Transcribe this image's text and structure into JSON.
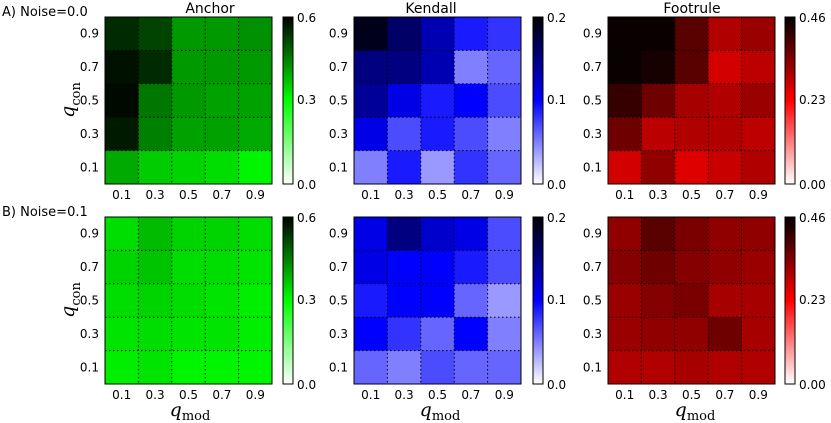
{
  "row_labels": [
    "A) Noise=0.0",
    "B) Noise=0.1"
  ],
  "column_titles": [
    "Anchor",
    "Kendall",
    "Footrule"
  ],
  "axis_labels": {
    "y_main": "q",
    "y_sub": "con",
    "x_main": "q",
    "x_sub": "mod"
  },
  "tick_labels": [
    "0.1",
    "0.3",
    "0.5",
    "0.7",
    "0.9"
  ],
  "colorbars": {
    "anchor": {
      "ticks": [
        "0.0",
        "0.3",
        "0.6"
      ],
      "max": 0.6
    },
    "kendall": {
      "ticks": [
        "0.0",
        "0.1",
        "0.2"
      ],
      "max": 0.2
    },
    "footrule": {
      "ticks": [
        "0.00",
        "0.23",
        "0.46"
      ],
      "max": 0.46
    }
  },
  "colors": {
    "anchor": [
      "#ffffff",
      "#00ff00",
      "#000000"
    ],
    "kendall": [
      "#ffffff",
      "#0000ff",
      "#000000"
    ],
    "footrule": [
      "#ffffff",
      "#ff0000",
      "#000000"
    ]
  },
  "chart_data": [
    {
      "type": "heatmap",
      "title": "Anchor",
      "row": "A) Noise=0.0",
      "xlabel": "q_mod",
      "ylabel": "q_con",
      "x": [
        0.1,
        0.3,
        0.5,
        0.7,
        0.9
      ],
      "y": [
        0.9,
        0.7,
        0.5,
        0.3,
        0.1
      ],
      "clim": [
        0,
        0.6
      ],
      "z": [
        [
          0.55,
          0.52,
          0.42,
          0.42,
          0.43
        ],
        [
          0.58,
          0.55,
          0.42,
          0.42,
          0.42
        ],
        [
          0.59,
          0.46,
          0.42,
          0.41,
          0.41
        ],
        [
          0.57,
          0.45,
          0.41,
          0.41,
          0.4
        ],
        [
          0.4,
          0.36,
          0.35,
          0.34,
          0.31
        ]
      ]
    },
    {
      "type": "heatmap",
      "title": "Kendall",
      "row": "A) Noise=0.0",
      "xlabel": "q_mod",
      "ylabel": "q_con",
      "x": [
        0.1,
        0.3,
        0.5,
        0.7,
        0.9
      ],
      "y": [
        0.9,
        0.7,
        0.5,
        0.3,
        0.1
      ],
      "clim": [
        0,
        0.2
      ],
      "z": [
        [
          0.19,
          0.16,
          0.13,
          0.09,
          0.08
        ],
        [
          0.15,
          0.15,
          0.13,
          0.05,
          0.06
        ],
        [
          0.14,
          0.11,
          0.09,
          0.1,
          0.07
        ],
        [
          0.11,
          0.07,
          0.09,
          0.07,
          0.05
        ],
        [
          0.05,
          0.09,
          0.04,
          0.08,
          0.06
        ]
      ]
    },
    {
      "type": "heatmap",
      "title": "Footrule",
      "row": "A) Noise=0.0",
      "xlabel": "q_mod",
      "ylabel": "q_con",
      "x": [
        0.1,
        0.3,
        0.5,
        0.7,
        0.9
      ],
      "y": [
        0.9,
        0.7,
        0.5,
        0.3,
        0.1
      ],
      "clim": [
        0,
        0.46
      ],
      "z": [
        [
          0.45,
          0.45,
          0.38,
          0.3,
          0.32
        ],
        [
          0.45,
          0.44,
          0.38,
          0.27,
          0.29
        ],
        [
          0.41,
          0.36,
          0.31,
          0.3,
          0.32
        ],
        [
          0.36,
          0.29,
          0.3,
          0.3,
          0.29
        ],
        [
          0.27,
          0.33,
          0.26,
          0.28,
          0.3
        ]
      ]
    },
    {
      "type": "heatmap",
      "title": "Anchor",
      "row": "B) Noise=0.1",
      "xlabel": "q_mod",
      "ylabel": "q_con",
      "x": [
        0.1,
        0.3,
        0.5,
        0.7,
        0.9
      ],
      "y": [
        0.9,
        0.7,
        0.5,
        0.3,
        0.1
      ],
      "clim": [
        0,
        0.6
      ],
      "z": [
        [
          0.34,
          0.38,
          0.35,
          0.35,
          0.34
        ],
        [
          0.35,
          0.37,
          0.34,
          0.34,
          0.33
        ],
        [
          0.34,
          0.35,
          0.34,
          0.33,
          0.32
        ],
        [
          0.33,
          0.34,
          0.33,
          0.33,
          0.32
        ],
        [
          0.32,
          0.33,
          0.31,
          0.31,
          0.31
        ]
      ]
    },
    {
      "type": "heatmap",
      "title": "Kendall",
      "row": "B) Noise=0.1",
      "xlabel": "q_mod",
      "ylabel": "q_con",
      "x": [
        0.1,
        0.3,
        0.5,
        0.7,
        0.9
      ],
      "y": [
        0.9,
        0.7,
        0.5,
        0.3,
        0.1
      ],
      "clim": [
        0,
        0.2
      ],
      "z": [
        [
          0.11,
          0.15,
          0.12,
          0.11,
          0.07
        ],
        [
          0.11,
          0.1,
          0.1,
          0.09,
          0.07
        ],
        [
          0.09,
          0.1,
          0.1,
          0.06,
          0.04
        ],
        [
          0.1,
          0.08,
          0.06,
          0.1,
          0.05
        ],
        [
          0.06,
          0.05,
          0.07,
          0.06,
          0.06
        ]
      ]
    },
    {
      "type": "heatmap",
      "title": "Footrule",
      "row": "B) Noise=0.1",
      "xlabel": "q_mod",
      "ylabel": "q_con",
      "x": [
        0.1,
        0.3,
        0.5,
        0.7,
        0.9
      ],
      "y": [
        0.9,
        0.7,
        0.5,
        0.3,
        0.1
      ],
      "clim": [
        0,
        0.46
      ],
      "z": [
        [
          0.33,
          0.38,
          0.35,
          0.33,
          0.33
        ],
        [
          0.34,
          0.36,
          0.34,
          0.33,
          0.32
        ],
        [
          0.32,
          0.34,
          0.35,
          0.31,
          0.31
        ],
        [
          0.32,
          0.33,
          0.33,
          0.36,
          0.31
        ],
        [
          0.3,
          0.3,
          0.31,
          0.3,
          0.3
        ]
      ]
    }
  ]
}
